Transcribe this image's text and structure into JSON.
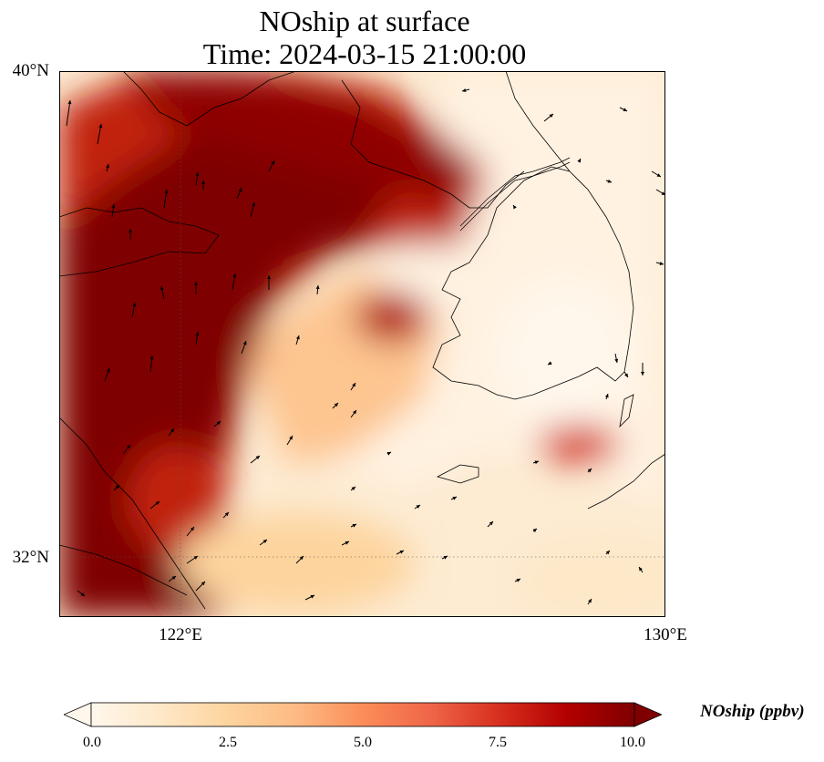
{
  "map": {
    "title_line1": "NOship at surface",
    "title_line2": "Time: 2024-03-15 21:00:00",
    "lat_labels": [
      "40°N",
      "32°N"
    ],
    "lon_labels": [
      "122°E",
      "130°E"
    ],
    "colorbar": {
      "label": "NOship (ppbv)",
      "ticks": [
        "0.0",
        "2.5",
        "5.0",
        "7.5",
        "10.0"
      ],
      "min": 0,
      "max": 10,
      "colormap": "OrRd",
      "extend": "both"
    },
    "extent": {
      "lon_min": 120,
      "lon_max": 130,
      "lat_min": 31,
      "lat_max": 40
    },
    "colors": {
      "low": "#fff7ec",
      "mid": "#fdbb84",
      "high": "#7f0000",
      "coastline": "#000000"
    }
  }
}
